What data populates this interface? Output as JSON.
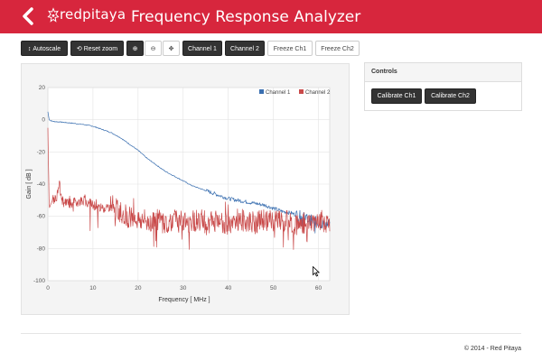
{
  "header": {
    "logo_text": "redpitaya",
    "title": "Frequency Response Analyzer"
  },
  "toolbar": {
    "autoscale": "Autoscale",
    "reset_zoom": "Reset zoom",
    "channel1": "Channel 1",
    "channel2": "Channel 2",
    "freeze_ch1": "Freeze Ch1",
    "freeze_ch2": "Freeze Ch2",
    "icons": [
      "updown-arrows-icon",
      "refresh-icon",
      "zoom-in-icon",
      "zoom-out-icon",
      "move-icon"
    ]
  },
  "controls": {
    "title": "Controls",
    "calibrate_ch1": "Calibrate Ch1",
    "calibrate_ch2": "Calibrate Ch2"
  },
  "footer": {
    "text": "© 2014 - Red Pitaya"
  },
  "colors": {
    "brand": "#d7263d",
    "channel1": "#3a6fb0",
    "channel2": "#c94a4a"
  },
  "chart_data": {
    "type": "line",
    "xlabel": "Frequency [ MHz ]",
    "ylabel": "Gain [ dB ]",
    "xlim": [
      0,
      62.5
    ],
    "ylim": [
      -100,
      20
    ],
    "xticks": [
      0,
      10,
      20,
      30,
      40,
      50,
      60
    ],
    "yticks": [
      20,
      0,
      -20,
      -40,
      -60,
      -80,
      -100
    ],
    "grid": true,
    "legend_position": "top-right",
    "series": [
      {
        "name": "Channel 1",
        "color": "#3a6fb0",
        "x": [
          0,
          0.3,
          1,
          3,
          5,
          8,
          10,
          12,
          14,
          16,
          18,
          20,
          22,
          24,
          26,
          28,
          30,
          32,
          34,
          36,
          38,
          40,
          42,
          44,
          46,
          48,
          50,
          52,
          54,
          56,
          58,
          60,
          62
        ],
        "y": [
          5,
          0,
          -1,
          -1.5,
          -2,
          -3,
          -4,
          -6,
          -8,
          -11,
          -15,
          -19,
          -24,
          -28,
          -32,
          -35,
          -38,
          -41,
          -43,
          -45,
          -47,
          -49,
          -50,
          -51,
          -52,
          -53,
          -55,
          -57,
          -58,
          -60,
          -62,
          -64,
          -65
        ]
      },
      {
        "name": "Channel 2",
        "color": "#c94a4a",
        "x": [
          0,
          0.3,
          1,
          2,
          2.5,
          3,
          5,
          8,
          10,
          12,
          14,
          16,
          18,
          20,
          22,
          24,
          26,
          28,
          30,
          32,
          34,
          36,
          38,
          40,
          42,
          44,
          46,
          48,
          50,
          52,
          54,
          56,
          58,
          60,
          62
        ],
        "y": [
          -5,
          -55,
          -50,
          -48,
          -38,
          -50,
          -52,
          -50,
          -53,
          -55,
          -54,
          -57,
          -60,
          -62,
          -63,
          -62,
          -64,
          -62,
          -64,
          -63,
          -62,
          -64,
          -63,
          -65,
          -62,
          -63,
          -64,
          -62,
          -63,
          -62,
          -64,
          -65,
          -63,
          -62,
          -64
        ]
      }
    ]
  }
}
